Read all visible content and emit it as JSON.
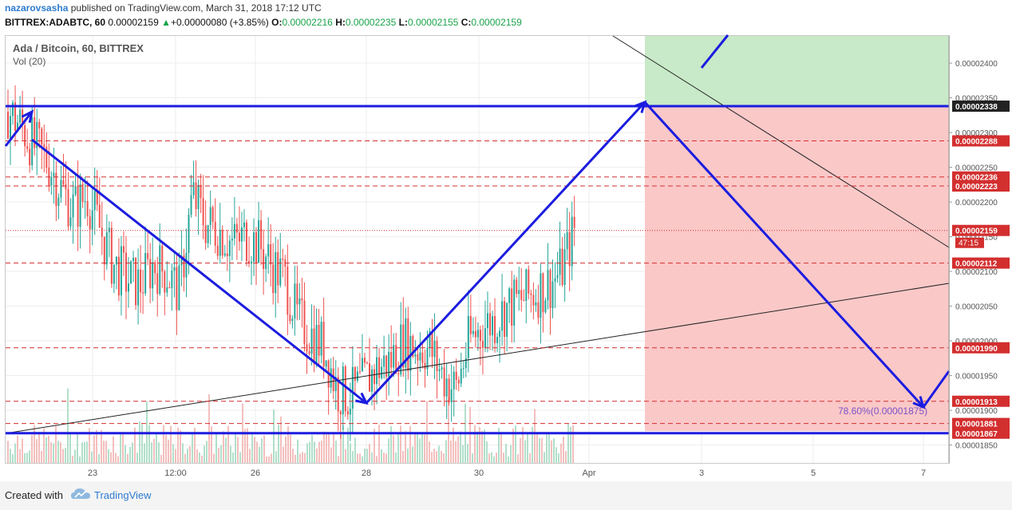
{
  "header": {
    "author": "nazarovsasha",
    "published": "published on TradingView.com, March 31, 2018 17:12 UTC",
    "symbol": "BITTREX:ADABTC, 60",
    "last": "0.00002159",
    "change_arrow": "▲",
    "change": "+0.00000080 (+3.85%)",
    "o_label": "O:",
    "o": "0.00002216",
    "h_label": "H:",
    "h": "0.00002235",
    "l_label": "L:",
    "l": "0.00002155",
    "c_label": "C:",
    "c": "0.00002159"
  },
  "overlay": {
    "title": "Ada / Bitcoin, 60, BITTREX",
    "volume": "Vol (20)"
  },
  "footer": {
    "created_with": "Created with",
    "brand": "TradingView"
  },
  "colors": {
    "up": "#26a69a",
    "down": "#ef5350",
    "arrow": "#1c1ce0",
    "level": "#d32f2f",
    "profit_zone": "#c8eac8",
    "loss_zone": "#fbc8c8",
    "fib": "#7a52c7"
  },
  "chart_data": {
    "type": "candlestick",
    "title": "Ada / Bitcoin, 60, BITTREX",
    "ylim": [
      1.82e-05,
      2.44e-05
    ],
    "y_ticks": [
      "0.00001850",
      "0.00001900",
      "0.00001950",
      "0.00002000",
      "0.00002050",
      "0.00002100",
      "0.00002150",
      "0.00002200",
      "0.00002250",
      "0.00002300",
      "0.00002350",
      "0.00002400"
    ],
    "x_ticks": [
      "23",
      "12:00",
      "26",
      "28",
      "30",
      "Apr",
      "3",
      "5",
      "7"
    ],
    "last_price": "0.00002159",
    "countdown": "47:15",
    "price_levels": [
      {
        "value": 2.338e-05,
        "label": "0.00002338",
        "style": "solid-blue"
      },
      {
        "value": 2.288e-05,
        "label": "0.00002288",
        "style": "dashed-red"
      },
      {
        "value": 2.236e-05,
        "label": "0.00002236",
        "style": "dashed-red"
      },
      {
        "value": 2.223e-05,
        "label": "0.00002223",
        "style": "dashed-red"
      },
      {
        "value": 2.112e-05,
        "label": "0.00002112",
        "style": "dashed-red"
      },
      {
        "value": 1.99e-05,
        "label": "0.00001990",
        "style": "dashed-red"
      },
      {
        "value": 1.913e-05,
        "label": "0.00001913",
        "style": "dashed-red"
      },
      {
        "value": 1.881e-05,
        "label": "0.00001881",
        "style": "dashed-red"
      },
      {
        "value": 1.867e-05,
        "label": "0.00001867",
        "style": "solid-blue"
      }
    ],
    "fib_annotation": "78.60%(0.00001875)",
    "path_points": [
      {
        "t": "21 12:00",
        "p": 2.3e-05
      },
      {
        "t": "22 00:00",
        "p": 2.34e-05
      },
      {
        "t": "27 20:00",
        "p": 1.884e-05
      },
      {
        "t": "31 17:00",
        "p": 2.35e-05
      },
      {
        "t": "Apr 7",
        "p": 1.875e-05
      }
    ],
    "close_path": [
      2.33e-05,
      2.31e-05,
      2.28e-05,
      2.26e-05,
      2.22e-05,
      2.19e-05,
      2.21e-05,
      2.16e-05,
      2.11e-05,
      2.09e-05,
      2.08e-05,
      2.11e-05,
      2.1e-05,
      2.07e-05,
      2.21e-05,
      2.17e-05,
      2.16e-05,
      2.14e-05,
      2.15e-05,
      2.14e-05,
      2.11e-05,
      2.09e-05,
      2.03e-05,
      2.01e-05,
      1.99e-05,
      1.93e-05,
      1.92e-05,
      1.94e-05,
      1.96e-05,
      1.97e-05,
      2e-05,
      1.99e-05,
      1.99e-05,
      1.95e-05,
      1.93e-05,
      2e-05,
      2.02e-05,
      2.03e-05,
      2.05e-05,
      2.06e-05,
      2.07e-05,
      2.08e-05,
      2.1e-05,
      2.16e-05
    ]
  }
}
